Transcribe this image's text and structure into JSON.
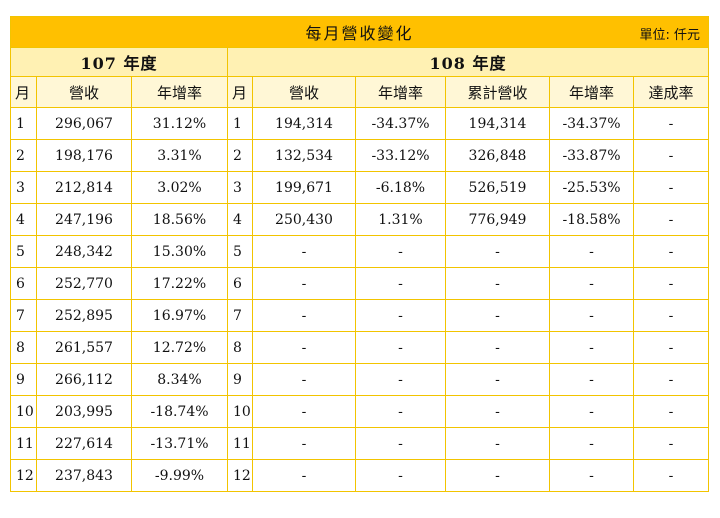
{
  "title": "每月營收變化",
  "unit": "單位: 仟元",
  "years": {
    "y107": "107 年度",
    "y108": "108 年度"
  },
  "headers": {
    "month": "月",
    "revenue": "營收",
    "yoy": "年增率",
    "month2": "月",
    "revenue2": "營收",
    "yoy2": "年增率",
    "cumulative": "累計營收",
    "cum_yoy": "年增率",
    "achievement": "達成率"
  },
  "rows": [
    {
      "m107": "1",
      "rev107": "296,067",
      "yoy107": "31.12%",
      "m108": "1",
      "rev108": "194,314",
      "yoy108": "-34.37%",
      "cum108": "194,314",
      "cumyoy108": "-34.37%",
      "ach": "-"
    },
    {
      "m107": "2",
      "rev107": "198,176",
      "yoy107": "3.31%",
      "m108": "2",
      "rev108": "132,534",
      "yoy108": "-33.12%",
      "cum108": "326,848",
      "cumyoy108": "-33.87%",
      "ach": "-"
    },
    {
      "m107": "3",
      "rev107": "212,814",
      "yoy107": "3.02%",
      "m108": "3",
      "rev108": "199,671",
      "yoy108": "-6.18%",
      "cum108": "526,519",
      "cumyoy108": "-25.53%",
      "ach": "-"
    },
    {
      "m107": "4",
      "rev107": "247,196",
      "yoy107": "18.56%",
      "m108": "4",
      "rev108": "250,430",
      "yoy108": "1.31%",
      "cum108": "776,949",
      "cumyoy108": "-18.58%",
      "ach": "-"
    },
    {
      "m107": "5",
      "rev107": "248,342",
      "yoy107": "15.30%",
      "m108": "5",
      "rev108": "-",
      "yoy108": "-",
      "cum108": "-",
      "cumyoy108": "-",
      "ach": "-"
    },
    {
      "m107": "6",
      "rev107": "252,770",
      "yoy107": "17.22%",
      "m108": "6",
      "rev108": "-",
      "yoy108": "-",
      "cum108": "-",
      "cumyoy108": "-",
      "ach": "-"
    },
    {
      "m107": "7",
      "rev107": "252,895",
      "yoy107": "16.97%",
      "m108": "7",
      "rev108": "-",
      "yoy108": "-",
      "cum108": "-",
      "cumyoy108": "-",
      "ach": "-"
    },
    {
      "m107": "8",
      "rev107": "261,557",
      "yoy107": "12.72%",
      "m108": "8",
      "rev108": "-",
      "yoy108": "-",
      "cum108": "-",
      "cumyoy108": "-",
      "ach": "-"
    },
    {
      "m107": "9",
      "rev107": "266,112",
      "yoy107": "8.34%",
      "m108": "9",
      "rev108": "-",
      "yoy108": "-",
      "cum108": "-",
      "cumyoy108": "-",
      "ach": "-"
    },
    {
      "m107": "10",
      "rev107": "203,995",
      "yoy107": "-18.74%",
      "m108": "10",
      "rev108": "-",
      "yoy108": "-",
      "cum108": "-",
      "cumyoy108": "-",
      "ach": "-"
    },
    {
      "m107": "11",
      "rev107": "227,614",
      "yoy107": "-13.71%",
      "m108": "11",
      "rev108": "-",
      "yoy108": "-",
      "cum108": "-",
      "cumyoy108": "-",
      "ach": "-"
    },
    {
      "m107": "12",
      "rev107": "237,843",
      "yoy107": "-9.99%",
      "m108": "12",
      "rev108": "-",
      "yoy108": "-",
      "cum108": "-",
      "cumyoy108": "-",
      "ach": "-"
    }
  ],
  "colors": {
    "title_bg": "#ffc000",
    "year_bg": "#fff1b3",
    "header_bg": "#fff7d6",
    "border": "#f2c400"
  }
}
